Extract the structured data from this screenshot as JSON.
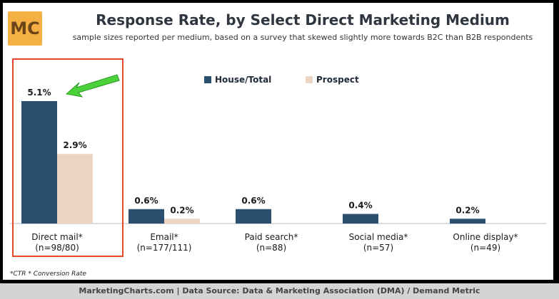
{
  "header": {
    "logo_text": "MC",
    "title": "Response Rate, by Select Direct Marketing Medium",
    "subtitle": "sample sizes reported per medium, based on a survey that skewed slightly more towards B2C than B2B respondents"
  },
  "footnote": "*CTR * Conversion Rate",
  "footer": "MarketingCharts.com | Data Source: Data & Marketing Association (DMA) / Demand Metric",
  "colors": {
    "house": "#2b4f6e",
    "prospect": "#ecd5c2",
    "highlight": "#e8452d",
    "arrow": "#4bd13a"
  },
  "chart_data": {
    "type": "bar",
    "title": "Response Rate, by Select Direct Marketing Medium",
    "categories": [
      "Direct mail*",
      "Email*",
      "Paid search*",
      "Social media*",
      "Online display*"
    ],
    "sample_sizes": [
      "(n=98/80)",
      "(n=177/111)",
      "(n=88)",
      "(n=57)",
      "(n=49)"
    ],
    "series": [
      {
        "name": "House/Total",
        "values": [
          5.1,
          0.6,
          0.6,
          0.4,
          0.2
        ],
        "labels": [
          "5.1%",
          "0.6%",
          "0.6%",
          "0.4%",
          "0.2%"
        ]
      },
      {
        "name": "Prospect",
        "values": [
          2.9,
          0.2,
          null,
          null,
          null
        ],
        "labels": [
          "2.9%",
          "0.2%",
          "",
          "",
          ""
        ]
      }
    ],
    "ylim": [
      0,
      5.1
    ],
    "legend": "top-center",
    "grid": false,
    "highlighted_category": "Direct mail*"
  }
}
